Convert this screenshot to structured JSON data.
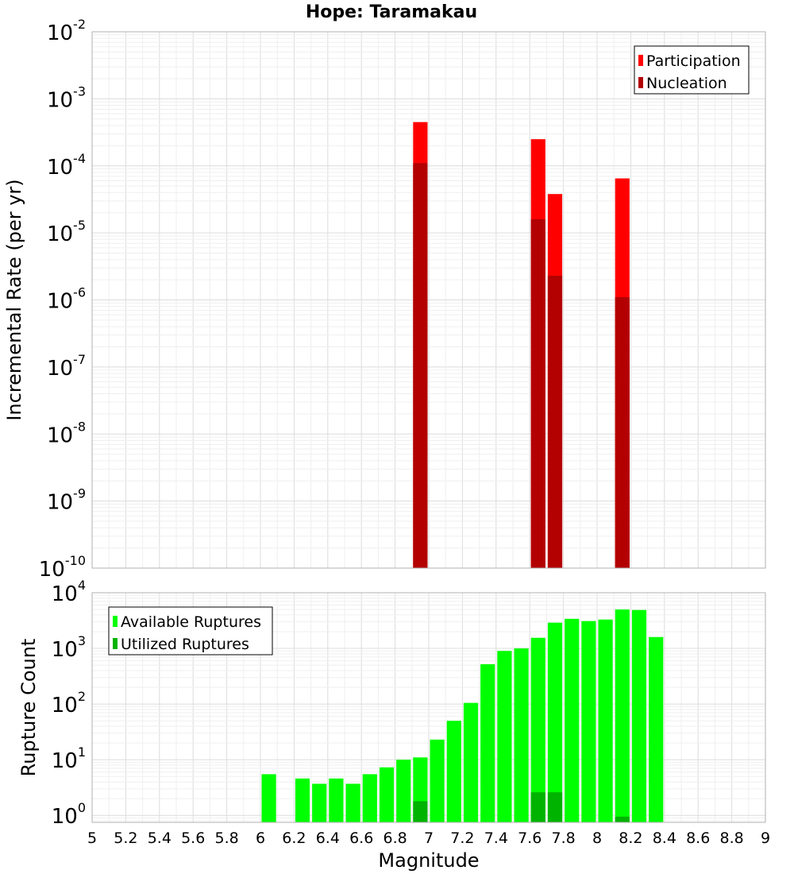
{
  "colors": {
    "participation": "#ff0000",
    "nucleation": "#b30000",
    "available": "#00ff00",
    "utilized": "#00b300"
  },
  "chart_data": [
    {
      "type": "bar",
      "title": "Hope: Taramakau",
      "ylabel": "Incremental Rate (per yr)",
      "xlabel": "",
      "xlim": [
        5,
        9
      ],
      "yscale": "log",
      "ylim": [
        1e-10,
        0.01
      ],
      "ytick_exponents": [
        -10,
        -9,
        -8,
        -7,
        -6,
        -5,
        -4,
        -3,
        -2
      ],
      "grid": true,
      "legend": "top-right",
      "series": [
        {
          "name": "Participation",
          "color": "participation",
          "points": [
            {
              "x": 6.95,
              "y": 0.00045
            },
            {
              "x": 7.65,
              "y": 0.00025
            },
            {
              "x": 7.75,
              "y": 3.8e-05
            },
            {
              "x": 8.15,
              "y": 6.5e-05
            }
          ]
        },
        {
          "name": "Nucleation",
          "color": "nucleation",
          "points": [
            {
              "x": 6.95,
              "y": 0.00011
            },
            {
              "x": 7.65,
              "y": 1.6e-05
            },
            {
              "x": 7.75,
              "y": 2.3e-06
            },
            {
              "x": 8.15,
              "y": 1.1e-06
            }
          ]
        }
      ]
    },
    {
      "type": "bar",
      "title": "",
      "ylabel": "Rupture Count",
      "xlabel": "Magnitude",
      "xlim": [
        5,
        9
      ],
      "xticks": [
        "5",
        "5.2",
        "5.4",
        "5.6",
        "5.8",
        "6",
        "6.2",
        "6.4",
        "6.6",
        "6.8",
        "7",
        "7.2",
        "7.4",
        "7.6",
        "7.8",
        "8",
        "8.2",
        "8.4",
        "8.6",
        "8.8",
        "9"
      ],
      "yscale": "log",
      "ylim": [
        0.75,
        10000
      ],
      "ytick_exponents": [
        0,
        1,
        2,
        3,
        4
      ],
      "grid": true,
      "legend": "top-left",
      "series": [
        {
          "name": "Available Ruptures",
          "color": "available",
          "points": [
            {
              "x": 6.05,
              "y": 5.5
            },
            {
              "x": 6.25,
              "y": 4.6
            },
            {
              "x": 6.35,
              "y": 3.7
            },
            {
              "x": 6.45,
              "y": 4.6
            },
            {
              "x": 6.55,
              "y": 3.7
            },
            {
              "x": 6.65,
              "y": 5.5
            },
            {
              "x": 6.75,
              "y": 7.3
            },
            {
              "x": 6.85,
              "y": 10
            },
            {
              "x": 6.95,
              "y": 11
            },
            {
              "x": 7.05,
              "y": 23
            },
            {
              "x": 7.15,
              "y": 50
            },
            {
              "x": 7.25,
              "y": 105
            },
            {
              "x": 7.35,
              "y": 520
            },
            {
              "x": 7.45,
              "y": 900
            },
            {
              "x": 7.55,
              "y": 1000
            },
            {
              "x": 7.65,
              "y": 1550
            },
            {
              "x": 7.75,
              "y": 2900
            },
            {
              "x": 7.85,
              "y": 3400
            },
            {
              "x": 7.95,
              "y": 3100
            },
            {
              "x": 8.05,
              "y": 3300
            },
            {
              "x": 8.15,
              "y": 5000
            },
            {
              "x": 8.25,
              "y": 4900
            },
            {
              "x": 8.35,
              "y": 1600
            }
          ]
        },
        {
          "name": "Utilized Ruptures",
          "color": "utilized",
          "points": [
            {
              "x": 6.95,
              "y": 1.8
            },
            {
              "x": 7.65,
              "y": 2.6
            },
            {
              "x": 7.75,
              "y": 2.6
            },
            {
              "x": 8.15,
              "y": 0.95
            }
          ]
        }
      ]
    }
  ]
}
